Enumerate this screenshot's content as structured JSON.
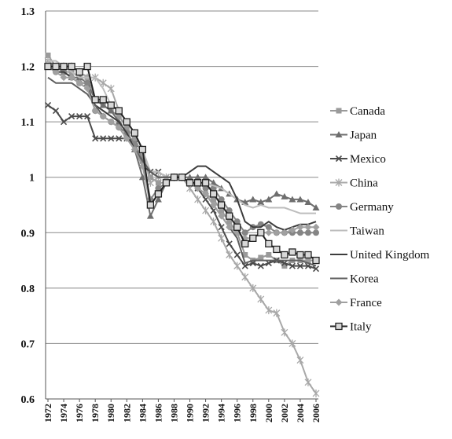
{
  "chart_data": {
    "type": "line",
    "title": "",
    "xlabel": "",
    "ylabel": "",
    "ylim": [
      0.6,
      1.3
    ],
    "yticks": [
      "0.6",
      "0.7",
      "0.8",
      "0.9",
      "1",
      "1.1",
      "1.2",
      "1.3"
    ],
    "xticks": [
      "1972",
      "1974",
      "1976",
      "1978",
      "1980",
      "1982",
      "1984",
      "1986",
      "1988",
      "1990",
      "1992",
      "1994",
      "1996",
      "1998",
      "2000",
      "2002",
      "2004",
      "2006"
    ],
    "grid": true,
    "legend_position": "right",
    "x": [
      1972,
      1973,
      1974,
      1975,
      1976,
      1977,
      1978,
      1979,
      1980,
      1981,
      1982,
      1983,
      1984,
      1985,
      1986,
      1987,
      1988,
      1989,
      1990,
      1991,
      1992,
      1993,
      1994,
      1995,
      1996,
      1997,
      1998,
      1999,
      2000,
      2001,
      2002,
      2003,
      2004,
      2005,
      2006
    ],
    "series": [
      {
        "name": "Canada",
        "color": "#9a9a9a",
        "marker": "square",
        "values": [
          1.22,
          1.2,
          1.19,
          1.19,
          1.18,
          1.18,
          1.14,
          1.13,
          1.12,
          1.11,
          1.09,
          1.07,
          1.04,
          1.0,
          0.99,
          0.99,
          1.0,
          1.0,
          0.99,
          0.98,
          0.97,
          0.96,
          0.94,
          0.92,
          0.9,
          0.86,
          0.85,
          0.855,
          0.86,
          0.85,
          0.84,
          0.85,
          0.85,
          0.85,
          0.85
        ]
      },
      {
        "name": "Japan",
        "color": "#6e6e6e",
        "marker": "triangle",
        "values": [
          1.2,
          1.2,
          1.19,
          1.18,
          1.18,
          1.17,
          1.14,
          1.13,
          1.12,
          1.1,
          1.08,
          1.05,
          1.0,
          0.93,
          0.96,
          0.99,
          1.0,
          1.0,
          1.0,
          1.0,
          1.0,
          0.99,
          0.98,
          0.97,
          0.96,
          0.955,
          0.96,
          0.955,
          0.96,
          0.97,
          0.965,
          0.96,
          0.96,
          0.955,
          0.945
        ]
      },
      {
        "name": "Mexico",
        "color": "#4a4a4a",
        "marker": "x",
        "values": [
          1.13,
          1.12,
          1.1,
          1.11,
          1.11,
          1.11,
          1.07,
          1.07,
          1.07,
          1.07,
          1.07,
          1.06,
          1.03,
          1.01,
          1.01,
          1.0,
          1.0,
          1.0,
          0.99,
          0.98,
          0.96,
          0.94,
          0.91,
          0.88,
          0.86,
          0.84,
          0.845,
          0.84,
          0.845,
          0.85,
          0.845,
          0.84,
          0.84,
          0.84,
          0.835
        ]
      },
      {
        "name": "China",
        "color": "#a8a8a8",
        "marker": "star",
        "values": [
          1.21,
          1.2,
          1.2,
          1.2,
          1.19,
          1.18,
          1.18,
          1.17,
          1.16,
          1.12,
          1.1,
          1.08,
          1.05,
          0.99,
          1.0,
          1.0,
          1.0,
          1.0,
          0.98,
          0.96,
          0.94,
          0.92,
          0.89,
          0.86,
          0.84,
          0.82,
          0.8,
          0.78,
          0.76,
          0.755,
          0.72,
          0.7,
          0.67,
          0.63,
          0.61
        ]
      },
      {
        "name": "Germany",
        "color": "#858585",
        "marker": "circle",
        "values": [
          1.2,
          1.19,
          1.19,
          1.18,
          1.17,
          1.17,
          1.12,
          1.11,
          1.1,
          1.09,
          1.08,
          1.06,
          1.03,
          0.96,
          0.98,
          0.99,
          1.0,
          1.0,
          0.99,
          0.99,
          0.98,
          0.98,
          0.96,
          0.94,
          0.92,
          0.9,
          0.91,
          0.915,
          0.91,
          0.9,
          0.9,
          0.9,
          0.9,
          0.9,
          0.9
        ]
      },
      {
        "name": "Taiwan",
        "color": "#bdbdbd",
        "marker": "none",
        "values": [
          1.21,
          1.21,
          1.2,
          1.19,
          1.18,
          1.18,
          1.18,
          1.16,
          1.13,
          1.12,
          1.1,
          1.08,
          1.05,
          1.01,
          1.01,
          1.0,
          1.0,
          1.0,
          0.99,
          0.99,
          0.99,
          0.985,
          0.98,
          0.97,
          0.96,
          0.95,
          0.945,
          0.95,
          0.945,
          0.945,
          0.945,
          0.94,
          0.935,
          0.935,
          0.935
        ]
      },
      {
        "name": "United Kingdom",
        "color": "#3c3c3c",
        "marker": "none",
        "values": [
          1.2,
          1.19,
          1.19,
          1.18,
          1.17,
          1.16,
          1.13,
          1.12,
          1.11,
          1.1,
          1.08,
          1.05,
          1.02,
          1.01,
          1.0,
          1.0,
          1.0,
          1.0,
          1.01,
          1.02,
          1.02,
          1.01,
          1.0,
          0.99,
          0.96,
          0.92,
          0.91,
          0.91,
          0.92,
          0.91,
          0.905,
          0.91,
          0.915,
          0.915,
          0.92
        ]
      },
      {
        "name": "Korea",
        "color": "#5e5e5e",
        "marker": "none",
        "values": [
          1.18,
          1.17,
          1.17,
          1.17,
          1.16,
          1.15,
          1.13,
          1.11,
          1.1,
          1.09,
          1.07,
          1.05,
          1.03,
          1.01,
          1.0,
          1.0,
          1.0,
          1.0,
          0.99,
          0.98,
          0.97,
          0.95,
          0.93,
          0.91,
          0.89,
          0.845,
          0.85,
          0.85,
          0.85,
          0.85,
          0.85,
          0.85,
          0.85,
          0.845,
          0.84
        ]
      },
      {
        "name": "France",
        "color": "#a0a0a0",
        "marker": "diamond",
        "values": [
          1.2,
          1.19,
          1.18,
          1.18,
          1.17,
          1.16,
          1.12,
          1.11,
          1.1,
          1.09,
          1.07,
          1.05,
          1.02,
          0.95,
          0.97,
          0.99,
          1.0,
          1.0,
          0.99,
          0.98,
          0.97,
          0.95,
          0.93,
          0.91,
          0.9,
          0.89,
          0.89,
          0.9,
          0.9,
          0.9,
          0.9,
          0.905,
          0.91,
          0.91,
          0.91
        ]
      },
      {
        "name": "Italy",
        "color": "#222222",
        "marker": "square-open",
        "values": [
          1.2,
          1.2,
          1.2,
          1.2,
          1.19,
          1.2,
          1.14,
          1.14,
          1.13,
          1.12,
          1.1,
          1.08,
          1.05,
          0.95,
          0.97,
          0.99,
          1.0,
          1.0,
          0.99,
          0.99,
          0.99,
          0.97,
          0.95,
          0.93,
          0.91,
          0.88,
          0.89,
          0.9,
          0.88,
          0.87,
          0.86,
          0.865,
          0.86,
          0.86,
          0.85
        ]
      }
    ]
  }
}
